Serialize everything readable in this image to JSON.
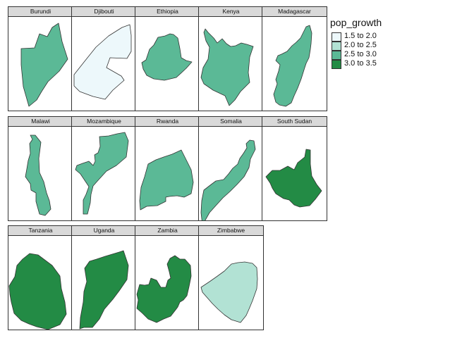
{
  "variable": "pop_growth",
  "legend": {
    "title": "pop_growth",
    "position": "right",
    "classes": [
      {
        "label": "1.5 to 2.0",
        "color": "#edf8fb"
      },
      {
        "label": "2.0 to 2.5",
        "color": "#b2e2d4"
      },
      {
        "label": "2.5 to 3.0",
        "color": "#5bb996"
      },
      {
        "label": "3.0 to 3.5",
        "color": "#238b45"
      }
    ]
  },
  "countries": [
    {
      "name": "Burundi",
      "class": 2,
      "shape": "burundi-shape"
    },
    {
      "name": "Djibouti",
      "class": 0,
      "shape": "djibouti-shape"
    },
    {
      "name": "Ethiopia",
      "class": 2,
      "shape": "ethiopia-shape"
    },
    {
      "name": "Kenya",
      "class": 2,
      "shape": "kenya-shape"
    },
    {
      "name": "Madagascar",
      "class": 2,
      "shape": "madagascar-shape"
    },
    {
      "name": "Malawi",
      "class": 2,
      "shape": "malawi-shape"
    },
    {
      "name": "Mozambique",
      "class": 2,
      "shape": "mozambique-shape"
    },
    {
      "name": "Rwanda",
      "class": 2,
      "shape": "rwanda-shape"
    },
    {
      "name": "Somalia",
      "class": 2,
      "shape": "somalia-shape"
    },
    {
      "name": "South Sudan",
      "class": 3,
      "shape": "south-sudan-shape"
    },
    {
      "name": "Tanzania",
      "class": 3,
      "shape": "tanzania-shape"
    },
    {
      "name": "Uganda",
      "class": 3,
      "shape": "uganda-shape"
    },
    {
      "name": "Zambia",
      "class": 3,
      "shape": "zambia-shape"
    },
    {
      "name": "Zimbabwe",
      "class": 1,
      "shape": "zimbabwe-shape"
    }
  ]
}
